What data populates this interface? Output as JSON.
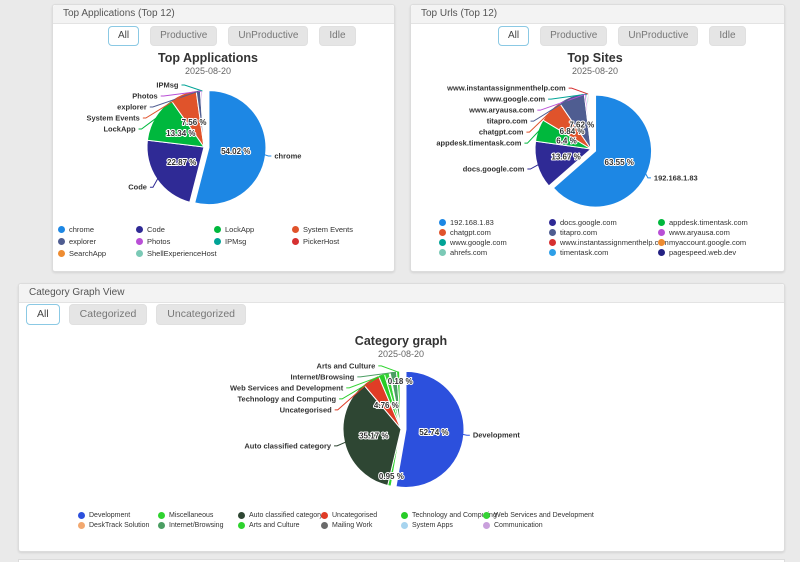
{
  "panels": [
    {
      "header": "Top Applications (Top 12)",
      "filters": [
        "All",
        "Productive",
        "UnProductive",
        "Idle"
      ],
      "active_filter": "All"
    },
    {
      "header": "Top Urls (Top 12)",
      "filters": [
        "All",
        "Productive",
        "UnProductive",
        "Idle"
      ],
      "active_filter": "All"
    },
    {
      "header": "Category Graph View",
      "filters": [
        "All",
        "Categorized",
        "Uncategorized"
      ],
      "active_filter": "All"
    }
  ],
  "chart_data": [
    {
      "type": "pie",
      "title": "Top Applications",
      "subtitle": "2025-08-20",
      "unit": "%",
      "legend_position": "bottom",
      "slices": [
        {
          "name": "chrome",
          "value": 54.02,
          "color": "#1d87e4",
          "label": "54.02 %",
          "callout": true,
          "sliced": true
        },
        {
          "name": "Code",
          "value": 22.87,
          "color": "#2f2a95",
          "label": "22.87 %",
          "callout": true
        },
        {
          "name": "LockApp",
          "value": 13.34,
          "color": "#00b83d",
          "label": "13.34 %",
          "callout": true
        },
        {
          "name": "System Events",
          "value": 7.56,
          "color": "#e0532b",
          "label": "7.56 %",
          "callout": true
        },
        {
          "name": "explorer",
          "value": 1.2,
          "color": "#4f5d91",
          "callout": true
        },
        {
          "name": "Photos",
          "value": 0.4,
          "color": "#b94fd6",
          "callout": true
        },
        {
          "name": "IPMsg",
          "value": 0.3,
          "color": "#00a396",
          "callout": true
        },
        {
          "name": "PickerHost",
          "value": 0.2,
          "color": "#d63031"
        },
        {
          "name": "SearchApp",
          "value": 0.07,
          "color": "#ee8c31"
        },
        {
          "name": "ShellExperienceHost",
          "value": 0.04,
          "color": "#7bc9b6"
        }
      ]
    },
    {
      "type": "pie",
      "title": "Top Sites",
      "subtitle": "2025-08-20",
      "unit": "%",
      "legend_position": "bottom",
      "slices": [
        {
          "name": "192.168.1.83",
          "value": 63.55,
          "color": "#1d87e4",
          "label": "63.55 %",
          "callout": true,
          "sliced": true
        },
        {
          "name": "docs.google.com",
          "value": 13.67,
          "color": "#2f2a95",
          "label": "13.67 %",
          "callout": true
        },
        {
          "name": "appdesk.timentask.com",
          "value": 6.4,
          "color": "#00b83d",
          "label": "6.4 %",
          "callout": true
        },
        {
          "name": "chatgpt.com",
          "value": 6.84,
          "color": "#e0532b",
          "label": "6.84 %",
          "callout": true
        },
        {
          "name": "titapro.com",
          "value": 7.62,
          "color": "#4f5d91",
          "label": "7.62 %",
          "callout": true
        },
        {
          "name": "www.aryausa.com",
          "value": 0.5,
          "color": "#b94fd6",
          "callout": true
        },
        {
          "name": "www.google.com",
          "value": 0.4,
          "color": "#00a396",
          "callout": true
        },
        {
          "name": "www.instantassignmenthelp.com",
          "value": 0.35,
          "color": "#d63031",
          "callout": true
        },
        {
          "name": "myaccount.google.com",
          "value": 0.25,
          "color": "#ee8c31"
        },
        {
          "name": "ahrefs.com",
          "value": 0.18,
          "color": "#7bc9b6"
        },
        {
          "name": "timentask.com",
          "value": 0.14,
          "color": "#2d9fe8"
        },
        {
          "name": "pagespeed.web.dev",
          "value": 0.1,
          "color": "#232082"
        }
      ]
    },
    {
      "type": "pie",
      "title": "Category graph",
      "subtitle": "2025-08-20",
      "unit": "%",
      "legend_position": "bottom",
      "slices": [
        {
          "name": "Development",
          "value": 52.74,
          "color": "#2c50dd",
          "label": "52.74 %",
          "callout": true,
          "sliced": true
        },
        {
          "name": "Miscellaneous",
          "value": 0.95,
          "color": "#2fd32f",
          "label": "0.95 %"
        },
        {
          "name": "Auto classified category",
          "value": 35.17,
          "color": "#2e4633",
          "label": "35.17 %",
          "callout": true
        },
        {
          "name": "Uncategorised",
          "value": 4.76,
          "color": "#e03c26",
          "label": "4.76 %",
          "callout": true
        },
        {
          "name": "Technology and Computing",
          "value": 1.7,
          "color": "#28cc28",
          "callout": true
        },
        {
          "name": "Web Services and Development",
          "value": 1.35,
          "color": "#35d435",
          "callout": true
        },
        {
          "name": "DeskTrack Solution",
          "value": 0.3,
          "color": "#f2a86f"
        },
        {
          "name": "Internet/Browsing",
          "value": 1.8,
          "color": "#4b9e63",
          "callout": true
        },
        {
          "name": "Arts and Culture",
          "value": 0.88,
          "color": "#2ed32e",
          "callout": true
        },
        {
          "name": "Mailing Work",
          "value": 0.18,
          "color": "#6b6b6b",
          "label": "0.18 %"
        },
        {
          "name": "System Apps",
          "value": 0.1,
          "color": "#a7d4ef"
        },
        {
          "name": "Communication",
          "value": 0.07,
          "color": "#c9a0dc"
        }
      ]
    }
  ]
}
